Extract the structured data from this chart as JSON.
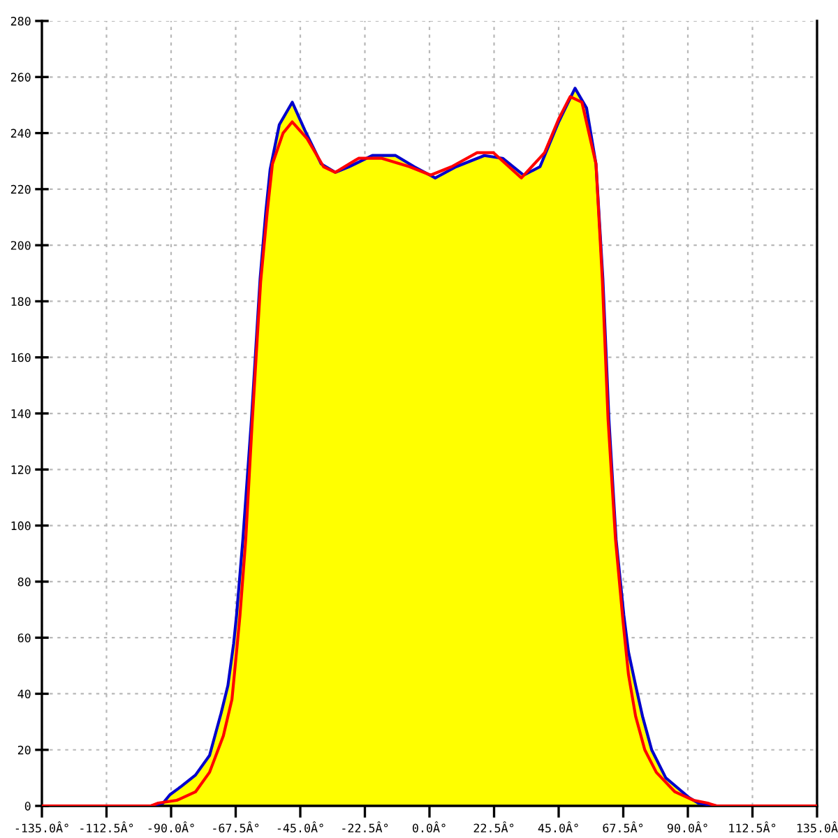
{
  "chart_data": {
    "type": "line",
    "xlim": [
      -135,
      135
    ],
    "ylim": [
      0,
      280
    ],
    "xticks": [
      {
        "value": -135,
        "label": "-135.0Â°"
      },
      {
        "value": -112.5,
        "label": "-112.5Â°"
      },
      {
        "value": -90,
        "label": "-90.0Â°"
      },
      {
        "value": -67.5,
        "label": "-67.5Â°"
      },
      {
        "value": -45,
        "label": "-45.0Â°"
      },
      {
        "value": -22.5,
        "label": "-22.5Â°"
      },
      {
        "value": 0,
        "label": "0.0Â°"
      },
      {
        "value": 22.5,
        "label": "22.5Â°"
      },
      {
        "value": 45,
        "label": "45.0Â°"
      },
      {
        "value": 67.5,
        "label": "67.5Â°"
      },
      {
        "value": 90,
        "label": "90.0Â°"
      },
      {
        "value": 112.5,
        "label": "112.5Â°"
      },
      {
        "value": 135,
        "label": "135.0Â"
      }
    ],
    "yticks": [
      0,
      20,
      40,
      60,
      80,
      100,
      120,
      140,
      160,
      180,
      200,
      220,
      240,
      260,
      280
    ],
    "grid": true,
    "line_style": "solid",
    "series": [
      {
        "color": "#0000cc",
        "x": [
          -135,
          -97,
          -92.8,
          -90.4,
          -86.4,
          -81.5,
          -76.6,
          -72.6,
          -70.2,
          -68.2,
          -67.2,
          -65,
          -62,
          -59,
          -57,
          -55.5,
          -52.3,
          -47.8,
          -43.4,
          -37.7,
          -32.8,
          -28,
          -19.9,
          -11.8,
          -5.3,
          2,
          9.3,
          19.1,
          25.5,
          32.8,
          38.5,
          45,
          50.7,
          54.7,
          58,
          60.4,
          62.5,
          65,
          67.7,
          69.3,
          71.8,
          74.2,
          77.4,
          82.3,
          90.4,
          93.6,
          100,
          135
        ],
        "values": [
          0,
          0,
          1,
          4,
          7,
          11,
          18,
          33,
          43,
          58,
          68,
          95,
          138,
          188,
          212,
          227,
          243,
          251,
          241,
          229,
          226,
          228,
          232,
          232,
          228,
          224,
          228,
          232,
          231,
          225,
          228,
          244,
          256,
          249,
          229,
          188,
          138,
          95,
          68,
          55,
          43,
          32,
          20,
          10,
          3,
          1,
          0,
          0
        ]
      },
      {
        "color": "#ff0000",
        "x": [
          -135,
          -97,
          -94.5,
          -88,
          -81.5,
          -76.6,
          -71.8,
          -68.8,
          -67.2,
          -66,
          -64,
          -61.8,
          -58.8,
          -56.5,
          -54.7,
          -51,
          -47.8,
          -42.6,
          -36.9,
          -32.8,
          -24.7,
          -16.6,
          -6.9,
          0.4,
          7.7,
          16.6,
          22.3,
          32,
          40.1,
          45,
          49,
          53.1,
          58,
          60.2,
          62.2,
          64.8,
          67.5,
          69.3,
          71.8,
          75,
          79,
          85.5,
          92,
          96.9,
          100,
          135
        ],
        "values": [
          0,
          0,
          1,
          2,
          5,
          12,
          25,
          38,
          55,
          68,
          95,
          136,
          187,
          212,
          229,
          240,
          244,
          238,
          228,
          226,
          231,
          231,
          228,
          225,
          228,
          233,
          233,
          224,
          233,
          245,
          253,
          251,
          229,
          188,
          138,
          95,
          65,
          47,
          32,
          20,
          12,
          5,
          2,
          1,
          0,
          0
        ]
      },
      {
        "type": "area",
        "color": "#ffff00",
        "x": [
          -97,
          -92.8,
          -90.4,
          -86.4,
          -81.5,
          -76.6,
          -72.6,
          -70.2,
          -68.2,
          -67.2,
          -65,
          -62,
          -59,
          -57,
          -55.5,
          -52.3,
          -47.8,
          -43.4,
          -37.7,
          -32.8,
          -28,
          -19.9,
          -11.8,
          -5.3,
          2,
          9.3,
          19.1,
          25.5,
          32.8,
          38.5,
          45,
          50.7,
          54.7,
          58,
          60.4,
          62.5,
          65,
          67.7,
          69.3,
          71.8,
          74.2,
          77.4,
          82.3,
          90.4,
          93.6,
          100
        ],
        "values": [
          0,
          1,
          4,
          7,
          11,
          18,
          33,
          43,
          58,
          68,
          95,
          138,
          188,
          212,
          227,
          243,
          251,
          241,
          229,
          226,
          228,
          232,
          232,
          228,
          224,
          228,
          232,
          231,
          225,
          228,
          244,
          256,
          249,
          229,
          188,
          138,
          95,
          68,
          55,
          43,
          32,
          20,
          10,
          3,
          1,
          0
        ]
      }
    ]
  }
}
